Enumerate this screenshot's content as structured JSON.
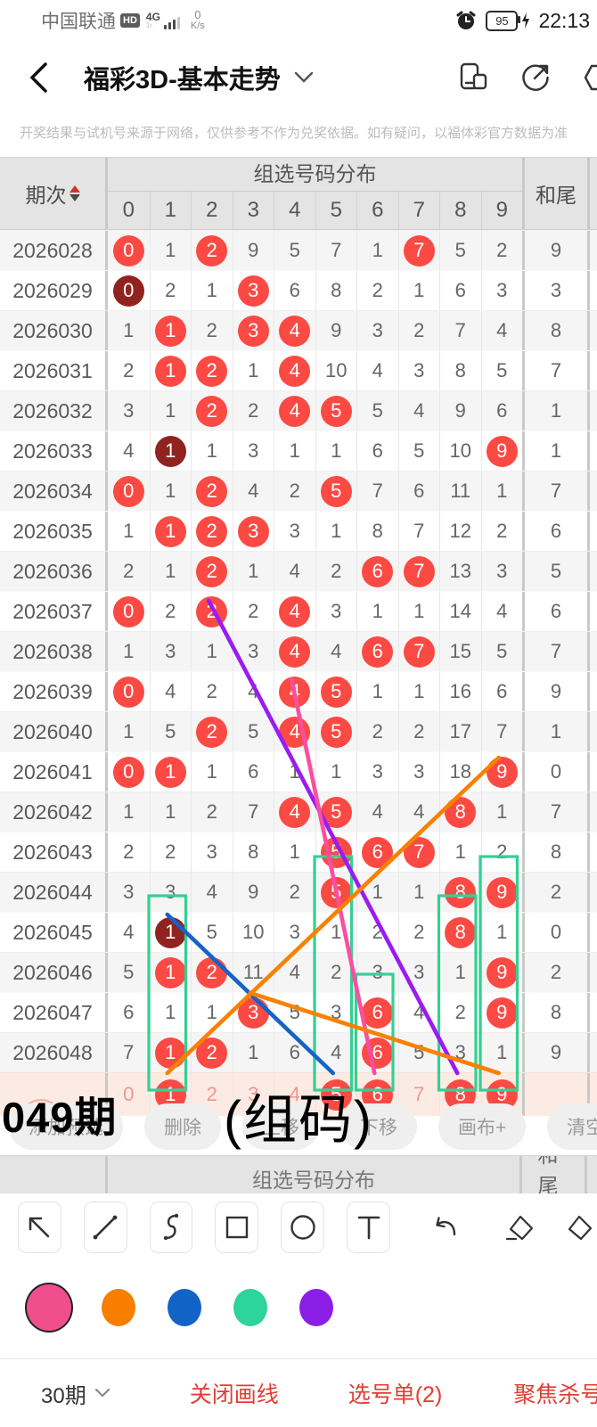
{
  "status_bar": {
    "carrier": "中国联通",
    "hd_badge": "HD",
    "network": "4G",
    "speed": "0",
    "speed_unit": "K/s",
    "battery": "95",
    "time": "22:13"
  },
  "nav": {
    "title": "福彩3D-基本走势"
  },
  "notice": "开奖结果与试机号来源于网络，仅供参考不作为兑奖依据。如有疑问，以福体彩官方数据为准",
  "table": {
    "period_header": "期次",
    "group_header": "组选号码分布",
    "tail_header": "和尾",
    "digits": [
      "0",
      "1",
      "2",
      "3",
      "4",
      "5",
      "6",
      "7",
      "8",
      "9"
    ],
    "rows": [
      {
        "period": "2026028",
        "values": [
          "0",
          "1",
          "2",
          "9",
          "5",
          "7",
          "1",
          "7",
          "5",
          "2"
        ],
        "tail": "9",
        "marks": {
          "0": "red",
          "2": "red",
          "7": "red"
        }
      },
      {
        "period": "2026029",
        "values": [
          "0",
          "2",
          "1",
          "3",
          "6",
          "8",
          "2",
          "1",
          "6",
          "3"
        ],
        "tail": "3",
        "marks": {
          "0": "dark",
          "3": "red"
        }
      },
      {
        "period": "2026030",
        "values": [
          "1",
          "1",
          "2",
          "3",
          "4",
          "9",
          "3",
          "2",
          "7",
          "4"
        ],
        "tail": "8",
        "marks": {
          "1": "red",
          "3": "red",
          "4": "red"
        }
      },
      {
        "period": "2026031",
        "values": [
          "2",
          "1",
          "2",
          "1",
          "4",
          "10",
          "4",
          "3",
          "8",
          "5"
        ],
        "tail": "7",
        "marks": {
          "1": "red",
          "2": "red",
          "4": "red"
        }
      },
      {
        "period": "2026032",
        "values": [
          "3",
          "1",
          "2",
          "2",
          "4",
          "5",
          "5",
          "4",
          "9",
          "6"
        ],
        "tail": "1",
        "marks": {
          "2": "red",
          "4": "red",
          "5": "red"
        }
      },
      {
        "period": "2026033",
        "values": [
          "4",
          "1",
          "1",
          "3",
          "1",
          "1",
          "6",
          "5",
          "10",
          "9"
        ],
        "tail": "1",
        "marks": {
          "1": "dark",
          "9": "red"
        }
      },
      {
        "period": "2026034",
        "values": [
          "0",
          "1",
          "2",
          "4",
          "2",
          "5",
          "7",
          "6",
          "11",
          "1"
        ],
        "tail": "7",
        "marks": {
          "0": "red",
          "2": "red",
          "5": "red"
        }
      },
      {
        "period": "2026035",
        "values": [
          "1",
          "1",
          "2",
          "3",
          "3",
          "1",
          "8",
          "7",
          "12",
          "2"
        ],
        "tail": "6",
        "marks": {
          "1": "red",
          "2": "red",
          "3": "red"
        }
      },
      {
        "period": "2026036",
        "values": [
          "2",
          "1",
          "2",
          "1",
          "4",
          "2",
          "6",
          "7",
          "13",
          "3"
        ],
        "tail": "5",
        "marks": {
          "2": "red",
          "6": "red",
          "7": "red"
        }
      },
      {
        "period": "2026037",
        "values": [
          "0",
          "2",
          "2",
          "2",
          "4",
          "3",
          "1",
          "1",
          "14",
          "4"
        ],
        "tail": "6",
        "marks": {
          "0": "red",
          "2": "red",
          "4": "red"
        }
      },
      {
        "period": "2026038",
        "values": [
          "1",
          "3",
          "1",
          "3",
          "4",
          "4",
          "6",
          "7",
          "15",
          "5"
        ],
        "tail": "7",
        "marks": {
          "4": "red",
          "6": "red",
          "7": "red"
        }
      },
      {
        "period": "2026039",
        "values": [
          "0",
          "4",
          "2",
          "4",
          "4",
          "5",
          "1",
          "1",
          "16",
          "6"
        ],
        "tail": "9",
        "marks": {
          "0": "red",
          "4": "red",
          "5": "red"
        }
      },
      {
        "period": "2026040",
        "values": [
          "1",
          "5",
          "2",
          "5",
          "4",
          "5",
          "2",
          "2",
          "17",
          "7"
        ],
        "tail": "1",
        "marks": {
          "2": "red",
          "4": "red",
          "5": "red"
        }
      },
      {
        "period": "2026041",
        "values": [
          "0",
          "1",
          "1",
          "6",
          "1",
          "1",
          "3",
          "3",
          "18",
          "9"
        ],
        "tail": "0",
        "marks": {
          "0": "red",
          "1": "red",
          "9": "red"
        }
      },
      {
        "period": "2026042",
        "values": [
          "1",
          "1",
          "2",
          "7",
          "4",
          "5",
          "4",
          "4",
          "8",
          "1"
        ],
        "tail": "7",
        "marks": {
          "4": "red",
          "5": "red",
          "8": "red"
        }
      },
      {
        "period": "2026043",
        "values": [
          "2",
          "2",
          "3",
          "8",
          "1",
          "5",
          "6",
          "7",
          "1",
          "2"
        ],
        "tail": "8",
        "marks": {
          "5": "red",
          "6": "red",
          "7": "red"
        }
      },
      {
        "period": "2026044",
        "values": [
          "3",
          "3",
          "4",
          "9",
          "2",
          "5",
          "1",
          "1",
          "8",
          "9"
        ],
        "tail": "2",
        "marks": {
          "5": "red",
          "8": "red",
          "9": "red"
        }
      },
      {
        "period": "2026045",
        "values": [
          "4",
          "1",
          "5",
          "10",
          "3",
          "1",
          "2",
          "2",
          "8",
          "1"
        ],
        "tail": "0",
        "marks": {
          "1": "dark",
          "8": "red"
        }
      },
      {
        "period": "2026046",
        "values": [
          "5",
          "1",
          "2",
          "11",
          "4",
          "2",
          "3",
          "3",
          "1",
          "9"
        ],
        "tail": "2",
        "marks": {
          "1": "red",
          "2": "red",
          "9": "red"
        }
      },
      {
        "period": "2026047",
        "values": [
          "6",
          "1",
          "1",
          "3",
          "5",
          "3",
          "6",
          "4",
          "2",
          "9"
        ],
        "tail": "8",
        "marks": {
          "3": "red",
          "6": "red",
          "9": "red"
        }
      },
      {
        "period": "2026048",
        "values": [
          "7",
          "1",
          "2",
          "1",
          "6",
          "4",
          "6",
          "5",
          "3",
          "1"
        ],
        "tail": "9",
        "marks": {
          "1": "red",
          "2": "red",
          "6": "red"
        }
      }
    ],
    "next_row": {
      "period": "2026049",
      "period_label": "049期",
      "values": [
        "0",
        "1",
        "2",
        "3",
        "4",
        "5",
        "6",
        "7",
        "8",
        "9"
      ],
      "tail": "",
      "marks": {
        "1": "red",
        "5": "red",
        "6": "red",
        "8": "red",
        "9": "red"
      }
    }
  },
  "actions": [
    "添加预选",
    "删除",
    "上移",
    "下移",
    "画布+",
    "清空"
  ],
  "annotation_caption": "(组码)",
  "second_header": {
    "group": "组选号码分布",
    "tail": "和尾"
  },
  "tools": [
    {
      "name": "pointer-arrow",
      "boxed": true
    },
    {
      "name": "line",
      "boxed": true
    },
    {
      "name": "curve",
      "boxed": true
    },
    {
      "name": "rectangle",
      "boxed": true
    },
    {
      "name": "ellipse",
      "boxed": true
    },
    {
      "name": "text",
      "boxed": true
    },
    {
      "name": "undo",
      "boxed": false
    },
    {
      "name": "eraser",
      "boxed": false
    },
    {
      "name": "eraser-cut",
      "boxed": false,
      "partial": true
    }
  ],
  "palette": [
    {
      "name": "pink",
      "hex": "#f04f8e",
      "selected": true
    },
    {
      "name": "orange",
      "hex": "#f87e00",
      "selected": false
    },
    {
      "name": "blue",
      "hex": "#1263c6",
      "selected": false
    },
    {
      "name": "green",
      "hex": "#2dd49c",
      "selected": false
    },
    {
      "name": "purple",
      "hex": "#8b1fe8",
      "selected": false
    }
  ],
  "footer": {
    "periods": "30期",
    "close_line": "关闭画线",
    "ticket": "选号单(2)",
    "focus": "聚焦杀号",
    "accent": "#e03e35"
  },
  "annotations": {
    "lines": [
      {
        "color": "#9b1bf2",
        "from": {
          "period": "2026037",
          "digit": 2
        },
        "to": {
          "period": "2026049",
          "digit": 8
        }
      },
      {
        "color": "#fa4f9f",
        "from": {
          "period": "2026039",
          "digit": 4
        },
        "to": {
          "period": "2026049",
          "digit": 6
        }
      },
      {
        "color": "#1663c8",
        "from": {
          "period": "2026045",
          "digit": 1
        },
        "to": {
          "period": "2026049",
          "digit": 5
        }
      },
      {
        "color": "#f88102",
        "from": {
          "period": "2026041",
          "digit": 9
        },
        "to": {
          "period": "2026049",
          "digit": 1
        }
      },
      {
        "color": "#f88102",
        "from": {
          "period": "2026047",
          "digit": 3
        },
        "to": {
          "period": "2026049",
          "digit": 9
        }
      }
    ],
    "rects": [
      {
        "digit": 1,
        "from_period": "2026045",
        "color": "#35cf94"
      },
      {
        "digit": 5,
        "from_period": "2026044",
        "color": "#35cf94"
      },
      {
        "digit": 6,
        "from_period": "2026047",
        "color": "#35cf94"
      },
      {
        "digit": 8,
        "from_period": "2026045",
        "color": "#35cf94"
      },
      {
        "digit": 9,
        "from_period": "2026044",
        "color": "#35cf94"
      }
    ]
  }
}
